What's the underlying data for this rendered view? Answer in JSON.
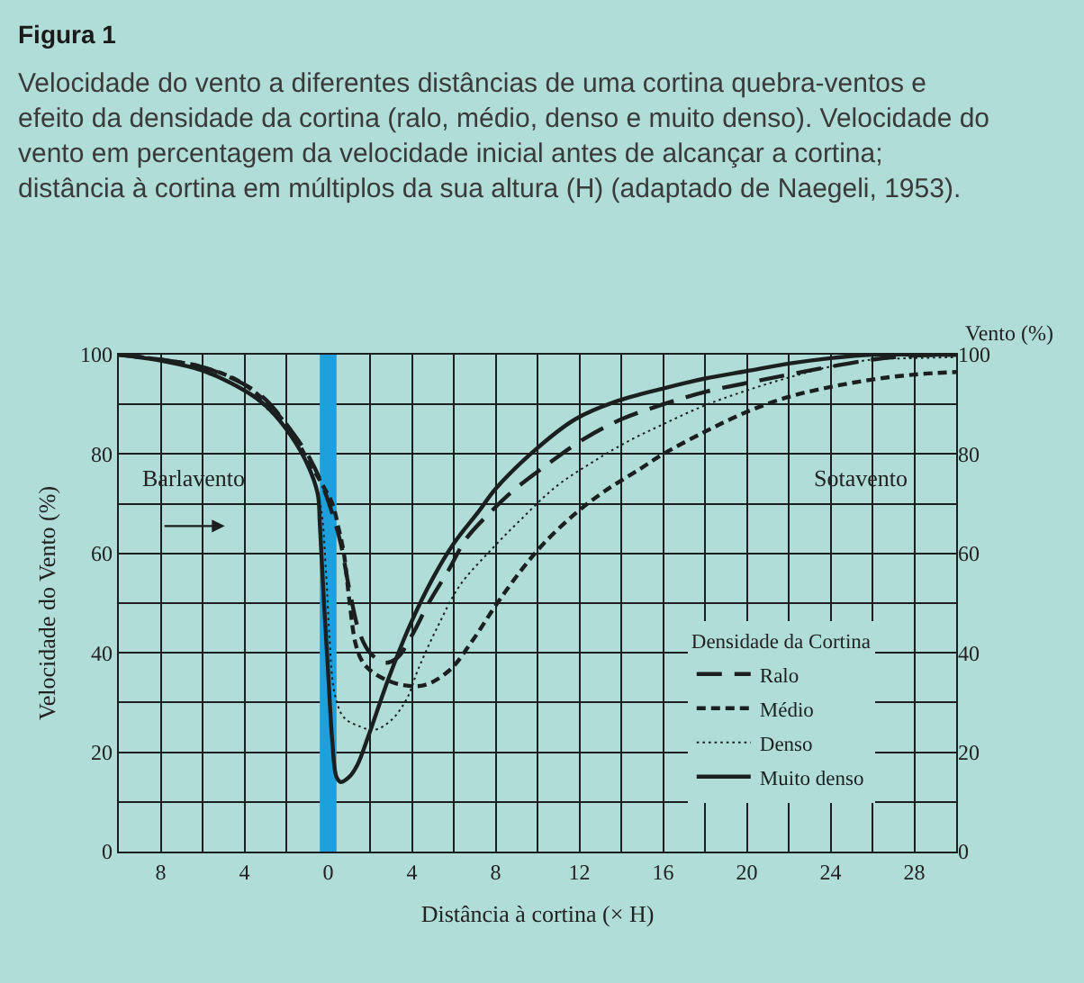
{
  "chart_data": {
    "type": "line",
    "title": "Figura 1",
    "subtitle": "Velocidade do vento a diferentes distâncias de uma cortina quebra-ventos e efeito da densidade da cortina (ralo, médio, denso e muito denso). Velocidade do vento em percentagem da velocidade inicial antes de alcançar a cortina; distância à cortina em múltiplos da sua altura (H) (adaptado de Naegeli, 1953).",
    "xlabel": "Distância à cortina (× H)",
    "ylabel": "Velocidade do Vento (%)",
    "y2label": "Vento (%)",
    "legend_title": "Densidade da Cortina",
    "annotations": [
      "Barlavento",
      "Sotavento"
    ],
    "series": [
      {
        "name": "Ralo",
        "color": "#1b1f1f",
        "line_style": "dashed",
        "x": [
          -10,
          -8,
          -6,
          -4,
          -3,
          -2,
          -1,
          -0.4,
          0.2,
          0.6,
          1,
          1.5,
          2,
          2.7,
          3.3,
          4,
          4.8,
          5.8,
          6.6,
          7.8,
          8.8,
          10.5,
          12.2,
          14,
          16,
          18,
          20,
          22,
          24,
          26,
          28,
          30
        ],
        "values": [
          100,
          99,
          97.5,
          94,
          91,
          86,
          80,
          75,
          68,
          62,
          53,
          44,
          40,
          38,
          39,
          43.5,
          50,
          57,
          63,
          68.5,
          72.5,
          78,
          83,
          87,
          90,
          92.5,
          94.3,
          96,
          97.6,
          99,
          99.8,
          100
        ]
      },
      {
        "name": "Médio",
        "color": "#1b1f1f",
        "line_style": "dashed",
        "x": [
          -10,
          -8,
          -6,
          -4,
          -2,
          -1,
          -0.3,
          0.2,
          0.5,
          0.75,
          1,
          1.3,
          1.6,
          2,
          2.8,
          3.6,
          4.6,
          5.8,
          6.9,
          8,
          9.2,
          10.3,
          11.8,
          13.2,
          14.9,
          16,
          18,
          20,
          22,
          24,
          26,
          28,
          30
        ],
        "values": [
          100,
          99,
          97.5,
          94,
          86,
          79,
          74,
          70,
          65,
          60,
          51,
          42,
          38.5,
          36.5,
          34.5,
          33.5,
          33.5,
          36.5,
          42.5,
          49.5,
          56.5,
          62,
          68,
          72.5,
          77,
          80,
          84.5,
          88.5,
          91.5,
          93.5,
          95,
          96,
          96.5
        ]
      },
      {
        "name": "Denso",
        "color": "#1b1f1f",
        "line_style": "dotted",
        "x": [
          -10,
          -8,
          -6,
          -4,
          -2,
          -1,
          -0.4,
          -0.1,
          0.05,
          0.3,
          0.75,
          1.5,
          2.2,
          3,
          3.75,
          4.3,
          5.2,
          6.3,
          7.8,
          9.2,
          10.9,
          12.6,
          14.3,
          16,
          18,
          20,
          22,
          24,
          26,
          28,
          30
        ],
        "values": [
          100,
          98.8,
          96.8,
          92.8,
          85,
          78,
          70.5,
          56,
          44,
          32,
          27,
          25.2,
          24.5,
          26.4,
          30.7,
          36.7,
          45,
          53.6,
          60.8,
          66.8,
          73.5,
          78.3,
          82.5,
          86,
          89.8,
          92.8,
          95.4,
          97.6,
          99,
          99.3,
          99.5
        ]
      },
      {
        "name": "Muito denso",
        "color": "#1b1f1f",
        "line_style": "solid",
        "x": [
          -10,
          -8,
          -6,
          -4,
          -3,
          -2,
          -1,
          -0.5,
          -0.4,
          -0.2,
          0,
          0.2,
          0.4,
          0.6,
          1,
          1.4,
          1.9,
          2.9,
          3.9,
          5,
          6,
          7.2,
          8,
          9.8,
          11.8,
          13.7,
          16,
          18,
          20,
          22,
          24,
          26,
          28,
          30
        ],
        "values": [
          100,
          98.8,
          96.8,
          92.8,
          89.8,
          85,
          78,
          72,
          66,
          50,
          36,
          22,
          15,
          14,
          15,
          17.5,
          23,
          35,
          45.5,
          55,
          62,
          68.5,
          73,
          80.5,
          87,
          90.5,
          93.2,
          95.2,
          96.7,
          98.2,
          99.3,
          100,
          100,
          100
        ]
      }
    ],
    "bands": [
      {
        "axis": "x",
        "from": -0.4,
        "to": 0.4,
        "color": "#1ea0dc"
      }
    ],
    "xlim": [
      -10,
      30
    ],
    "xticks": [
      {
        "value": -8,
        "label": "8"
      },
      {
        "value": -6,
        "label": null
      },
      {
        "value": -4,
        "label": "4"
      },
      {
        "value": -2,
        "label": null
      },
      0,
      {
        "value": 2,
        "label": null
      },
      4,
      {
        "value": 6,
        "label": null
      },
      8,
      {
        "value": 10,
        "label": null
      },
      12,
      {
        "value": 14,
        "label": null
      },
      16,
      {
        "value": 18,
        "label": null
      },
      20,
      {
        "value": 22,
        "label": null
      },
      24,
      {
        "value": 26,
        "label": null
      },
      28
    ],
    "ylim": [
      0,
      100
    ],
    "yticks": [
      0,
      {
        "value": 10,
        "label": null
      },
      20,
      {
        "value": 30,
        "label": null
      },
      40,
      {
        "value": 50,
        "label": null
      },
      60,
      {
        "value": 70,
        "label": null
      },
      80,
      {
        "value": 90,
        "label": null
      },
      100
    ],
    "y2lim": [
      0,
      100
    ],
    "y2ticks": [
      0,
      20,
      40,
      60,
      80,
      100
    ],
    "grid": true,
    "legend": "bottom right"
  }
}
